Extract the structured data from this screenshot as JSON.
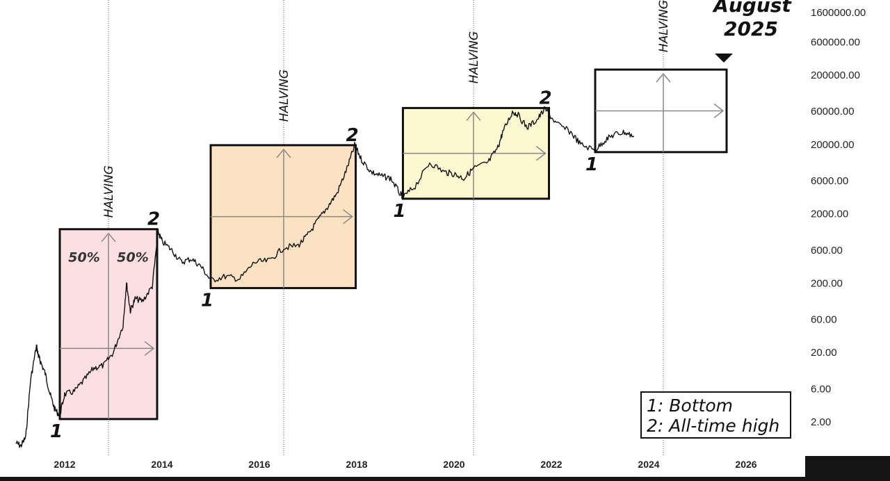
{
  "chart_data": {
    "type": "line",
    "scale": "log",
    "ylim": [
      1,
      2000000
    ],
    "xlim": [
      2011.0,
      2027.1
    ],
    "y_ticks": [
      {
        "label": "1600000.00",
        "value": 1600000
      },
      {
        "label": "600000.00",
        "value": 600000
      },
      {
        "label": "200000.00",
        "value": 200000
      },
      {
        "label": "60000.00",
        "value": 60000
      },
      {
        "label": "20000.00",
        "value": 20000
      },
      {
        "label": "6000.00",
        "value": 6000
      },
      {
        "label": "2000.00",
        "value": 2000
      },
      {
        "label": "600.00",
        "value": 600
      },
      {
        "label": "200.00",
        "value": 200
      },
      {
        "label": "60.00",
        "value": 60
      },
      {
        "label": "20.00",
        "value": 20
      },
      {
        "label": "6.00",
        "value": 6
      },
      {
        "label": "2.00",
        "value": 2
      }
    ],
    "x_ticks": [
      {
        "label": "2012",
        "value": 2012
      },
      {
        "label": "2014",
        "value": 2014
      },
      {
        "label": "2016",
        "value": 2016
      },
      {
        "label": "2018",
        "value": 2018
      },
      {
        "label": "2020",
        "value": 2020
      },
      {
        "label": "2022",
        "value": 2022
      },
      {
        "label": "2024",
        "value": 2024
      },
      {
        "label": "2026",
        "value": 2026
      }
    ],
    "halvings": [
      {
        "label": "HALVING",
        "x": 2012.9
      },
      {
        "label": "HALVING",
        "x": 2016.5
      },
      {
        "label": "HALVING",
        "x": 2020.4
      },
      {
        "label": "HALVING",
        "x": 2024.3
      }
    ],
    "cycles": [
      {
        "x_start": 2011.9,
        "x_end": 2013.9,
        "y_low": 2.2,
        "y_high": 1200,
        "color": "#fcdfe3",
        "bottom_label": "1",
        "top_label": "2",
        "pct_left": "50%",
        "pct_right": "50%"
      },
      {
        "x_start": 2015.0,
        "x_end": 2017.98,
        "y_low": 170,
        "y_high": 19500,
        "color": "#fbe2c3",
        "bottom_label": "1",
        "top_label": "2"
      },
      {
        "x_start": 2018.95,
        "x_end": 2021.95,
        "y_low": 3300,
        "y_high": 67000,
        "color": "#fdf8d0",
        "bottom_label": "1",
        "top_label": "2"
      },
      {
        "x_start": 2022.9,
        "x_end": 2025.6,
        "y_low": 15500,
        "y_high": 240000,
        "color": "#ffffff",
        "bottom_label": "1",
        "top_label": ""
      }
    ],
    "price": {
      "x": [
        2011.0,
        2011.1,
        2011.2,
        2011.3,
        2011.42,
        2011.46,
        2011.5,
        2011.6,
        2011.7,
        2011.8,
        2011.9,
        2012.0,
        2012.2,
        2012.4,
        2012.6,
        2012.8,
        2013.0,
        2013.2,
        2013.27,
        2013.35,
        2013.45,
        2013.6,
        2013.8,
        2013.92,
        2014.0,
        2014.2,
        2014.4,
        2014.6,
        2014.8,
        2015.0,
        2015.3,
        2015.6,
        2015.9,
        2016.2,
        2016.5,
        2016.8,
        2017.0,
        2017.2,
        2017.4,
        2017.6,
        2017.8,
        2017.96,
        2018.1,
        2018.3,
        2018.5,
        2018.7,
        2018.9,
        2018.96,
        2019.2,
        2019.5,
        2019.8,
        2020.0,
        2020.2,
        2020.4,
        2020.7,
        2020.9,
        2021.0,
        2021.2,
        2021.3,
        2021.5,
        2021.7,
        2021.87,
        2022.1,
        2022.4,
        2022.6,
        2022.9,
        2023.1,
        2023.3,
        2023.5,
        2023.7
      ],
      "y": [
        1,
        0.9,
        1.2,
        8,
        25,
        18,
        15,
        10,
        5,
        3,
        2.5,
        5,
        5.5,
        8,
        12,
        13,
        20,
        50,
        200,
        80,
        120,
        110,
        180,
        1100,
        800,
        600,
        400,
        450,
        350,
        220,
        250,
        230,
        400,
        420,
        650,
        700,
        1000,
        1600,
        2500,
        4000,
        9000,
        19500,
        12000,
        8000,
        7000,
        6500,
        3800,
        3500,
        5000,
        11000,
        8000,
        7500,
        6500,
        9000,
        11000,
        18000,
        30000,
        59000,
        55000,
        35000,
        45000,
        65000,
        40000,
        30000,
        20000,
        16500,
        23000,
        28000,
        30000,
        26000
      ]
    },
    "target_label_line1": "August",
    "target_label_line2": "2025",
    "target_x": 2025.55,
    "legend": [
      "1: Bottom",
      "2: All-time high"
    ]
  }
}
